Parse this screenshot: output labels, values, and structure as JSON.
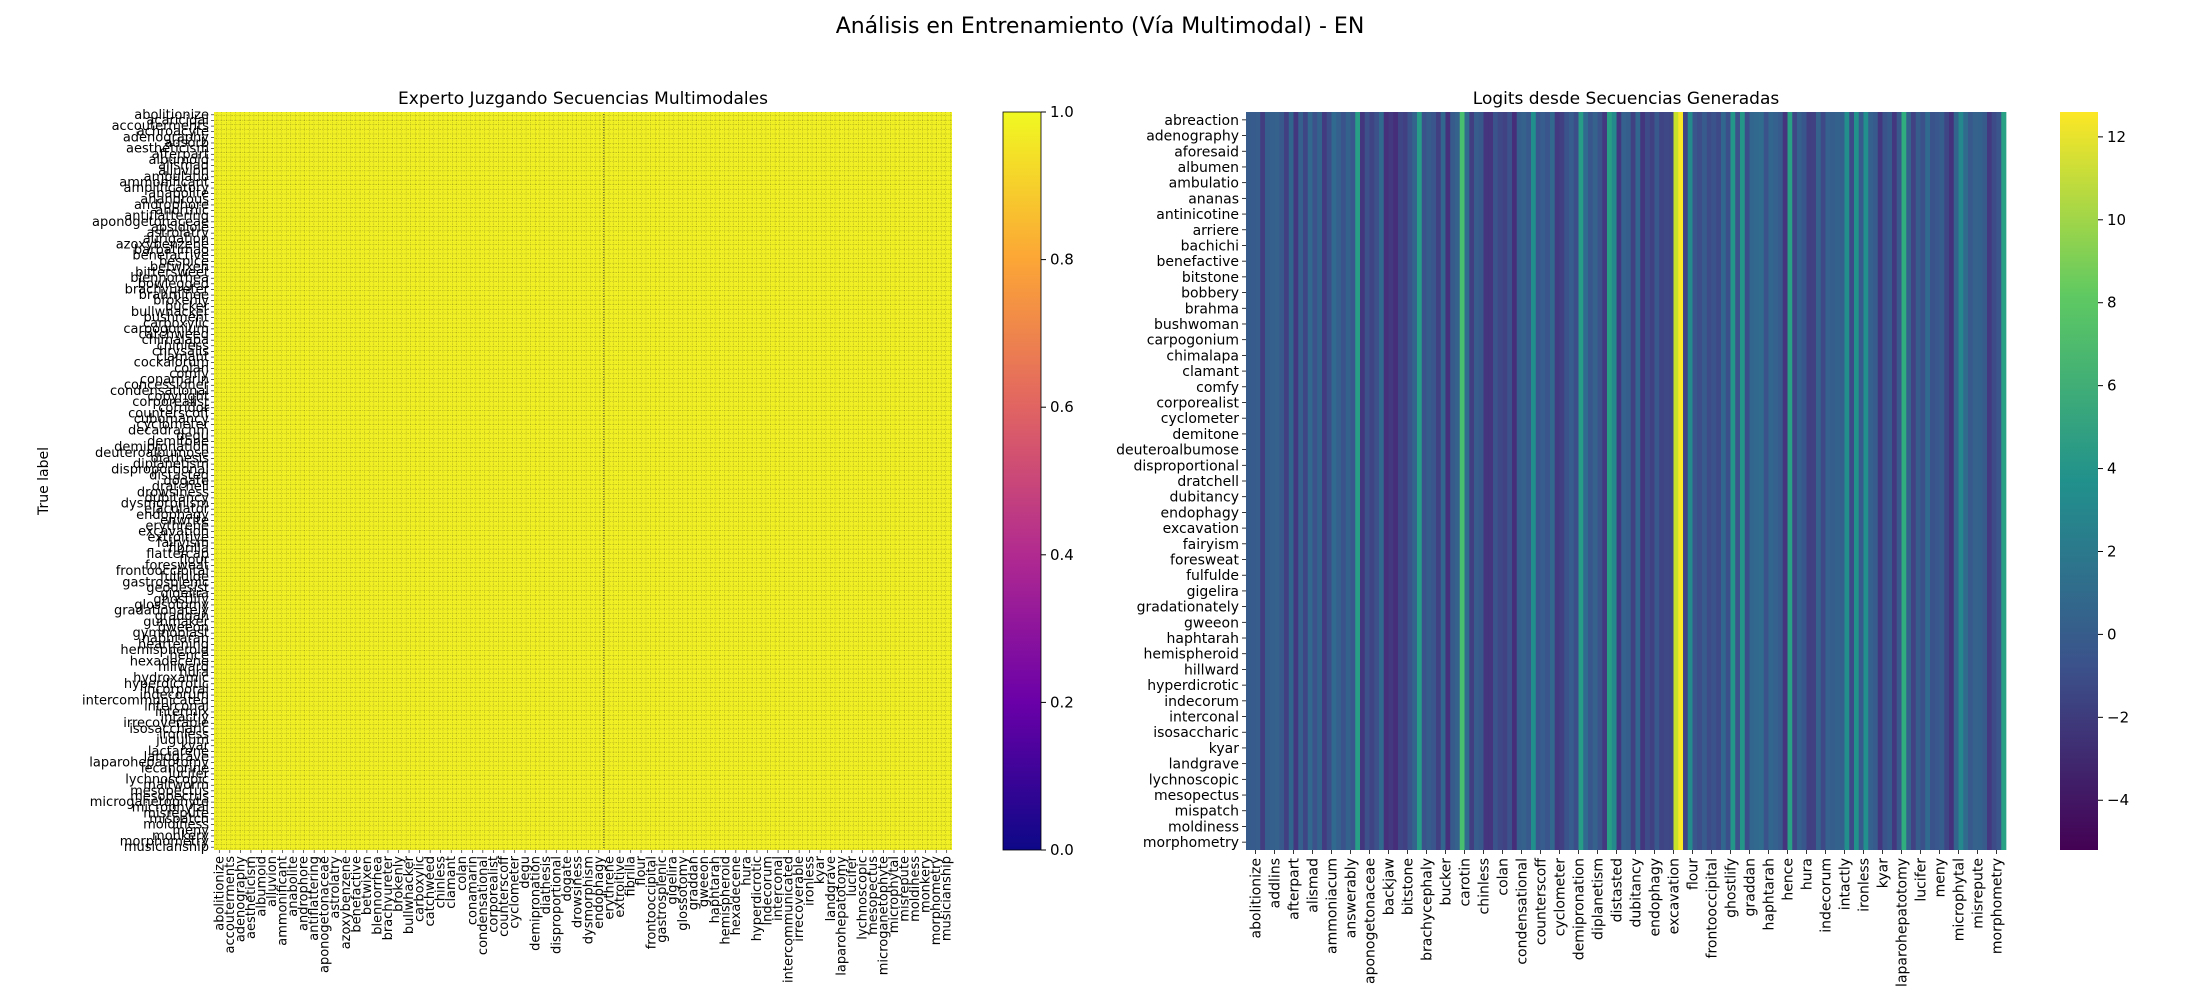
{
  "figure": {
    "suptitle": "Análisis en Entrenamiento (Vía Multimodal) - EN"
  },
  "chart_data": [
    {
      "type": "heatmap",
      "title": "Experto Juzgando Secuencias Multimodales",
      "ylabel": "True label",
      "xlabel": "",
      "colormap": "plasma",
      "colorbar": {
        "range": [
          0.0,
          1.0
        ],
        "ticks": [
          "0.0",
          "0.2",
          "0.4",
          "0.6",
          "0.8",
          "1.0"
        ]
      },
      "n_rows": 160,
      "n_cols": 160,
      "base_value": 1.0,
      "annotated": true,
      "marker_column": 84,
      "gridlines": "dotted",
      "yticklabels": [
        "abolitionize",
        "acaricidal",
        "accouterments",
        "achroacyte",
        "adenography",
        "adsorb",
        "aestheticism",
        "afterpart",
        "albumoid",
        "alismad",
        "alluvion",
        "ambulatio",
        "ammonificant",
        "amplificatory",
        "anabolite",
        "anandrous",
        "androphore",
        "anorthic",
        "antiflattering",
        "aponogetonaceae",
        "apsidiole",
        "astrolatry",
        "aurigation",
        "azoxybenzene",
        "barbatimao",
        "benefactive",
        "bespice",
        "betwixen",
        "bittersweet",
        "blennorrhea",
        "bowlegged",
        "brachyureter",
        "brahminee",
        "brokenly",
        "bucker",
        "bullwhacker",
        "bushment",
        "carboxylic",
        "carpogonium",
        "catchweed",
        "chimalapa",
        "chinless",
        "chrysalis",
        "clamant",
        "cockalorum",
        "colan",
        "comfy",
        "conamarin",
        "concessioner",
        "condensational",
        "copyright",
        "corporealist",
        "corridor",
        "counterscoff",
        "cubomancy",
        "cyclometer",
        "decadrachm",
        "degu",
        "demitone",
        "demipronation",
        "deuteroalbumose",
        "diathesis",
        "diplanetism",
        "disproportional",
        "distasted",
        "dogate",
        "dratchell",
        "drowsiness",
        "dubitancy",
        "dysmorphism",
        "ejaculator",
        "endophagy",
        "enwrite",
        "erythrene",
        "excavation",
        "extroitive",
        "fairyism",
        "fibrilla",
        "flattercap",
        "flour",
        "foresweat",
        "frontooccipital",
        "fulfulde",
        "gastrosplenic",
        "geodesist",
        "gigelira",
        "ghostlify",
        "glossotomy",
        "gradationately",
        "graddan",
        "gunmaker",
        "gweeon",
        "gymnoplast",
        "haphtarah",
        "heartening",
        "hemispheroid",
        "hence",
        "hexadecene",
        "hillward",
        "hura",
        "hydroxamic",
        "hyperdicrotic",
        "incorporal",
        "indecorum",
        "intercommunicated",
        "interconal",
        "intermix",
        "intactly",
        "irrecoverable",
        "isosaccharic",
        "ironless",
        "jugulum",
        "kyar",
        "lactarene",
        "landgrave",
        "laparohepatotomy",
        "lecanorine",
        "lucifer",
        "lychnoscopic",
        "maltworm",
        "mesopectus",
        "mesopectus",
        "microganetophyte",
        "microphytal",
        "misrepute",
        "mispatch",
        "moldiness",
        "meny",
        "monkery",
        "morphometry",
        "musicianship"
      ],
      "xticklabels": [
        "abolitionize",
        "accouterments",
        "adenography",
        "aestheticism",
        "albumoid",
        "alluvion",
        "ammonificant",
        "anabolite",
        "androphore",
        "antiflattering",
        "aponogetonaceae",
        "astrolatry",
        "azoxybenzene",
        "benefactive",
        "betwixen",
        "blennorrhea",
        "brachyureter",
        "brokenly",
        "bullwhacker",
        "carboxylic",
        "catchweed",
        "chinless",
        "clamant",
        "colan",
        "conamarin",
        "condensational",
        "corporealist",
        "counterscoff",
        "cyclometer",
        "degu",
        "demipronation",
        "diathesis",
        "disproportional",
        "dogate",
        "drowsiness",
        "dysmorphism",
        "endophagy",
        "erythrene",
        "extroitive",
        "fibrilla",
        "flour",
        "frontooccipital",
        "gastrosplenic",
        "gigelira",
        "glossotomy",
        "graddan",
        "gweeon",
        "haphtarah",
        "hemispheroid",
        "hexadecene",
        "hura",
        "hyperdicrotic",
        "indecorum",
        "interconal",
        "intercommunicated",
        "irrecoverable",
        "ironless",
        "kyar",
        "landgrave",
        "laparohepatotomy",
        "lucifer",
        "lychnoscopic",
        "mesopectus",
        "microganetophyte",
        "microphytal",
        "misrepute",
        "moldiness",
        "monkery",
        "morphometry",
        "musicianship"
      ]
    },
    {
      "type": "heatmap",
      "title": "Logits desde Secuencias Generadas",
      "xlabel": "",
      "ylabel": "",
      "colormap": "viridis",
      "colorbar": {
        "range": [
          -5.2,
          12.6
        ],
        "ticks": [
          "−4",
          "−2",
          "0",
          "2",
          "4",
          "6",
          "8",
          "10",
          "12"
        ]
      },
      "n_rows": 160,
      "n_cols": 160,
      "pattern": "column-constant stripes",
      "notable_columns": [
        {
          "index": 91,
          "label": "endophagy",
          "value": 12.5
        },
        {
          "index": 90,
          "label": "endophagy",
          "value": 11.0
        },
        {
          "index": 45,
          "label": "carotin",
          "value": 7.0
        }
      ],
      "yticklabels": [
        "abreaction",
        "adenography",
        "aforesaid",
        "albumen",
        "ambulatio",
        "ananas",
        "antinicotine",
        "arriere",
        "bachichi",
        "benefactive",
        "bitstone",
        "bobbery",
        "brahma",
        "bushwoman",
        "carpogonium",
        "chimalapa",
        "clamant",
        "comfy",
        "corporealist",
        "cyclometer",
        "demitone",
        "deuteroalbumose",
        "disproportional",
        "dratchell",
        "dubitancy",
        "endophagy",
        "excavation",
        "fairyism",
        "foresweat",
        "fulfulde",
        "gigelira",
        "gradationately",
        "gweeon",
        "haphtarah",
        "hemispheroid",
        "hillward",
        "hyperdicrotic",
        "indecorum",
        "interconal",
        "isosaccharic",
        "kyar",
        "landgrave",
        "lychnoscopic",
        "mesopectus",
        "mispatch",
        "moldiness",
        "morphometry"
      ],
      "xticklabels": [
        "abolitionize",
        "addlins",
        "afterpart",
        "alismad",
        "ammoniacum",
        "answerably",
        "aponogetonaceae",
        "backjaw",
        "bitstone",
        "brachycephaly",
        "bucker",
        "carotin",
        "chinless",
        "colan",
        "condensational",
        "counterscoff",
        "cyclometer",
        "demipronation",
        "diplanetism",
        "distasted",
        "dubitancy",
        "endophagy",
        "excavation",
        "flour",
        "frontooccipital",
        "ghostlify",
        "graddan",
        "haphtarah",
        "hence",
        "hura",
        "indecorum",
        "intactly",
        "ironless",
        "kyar",
        "laparohepatotomy",
        "lucifer",
        "meny",
        "microphytal",
        "misrepute",
        "morphometry"
      ]
    }
  ]
}
